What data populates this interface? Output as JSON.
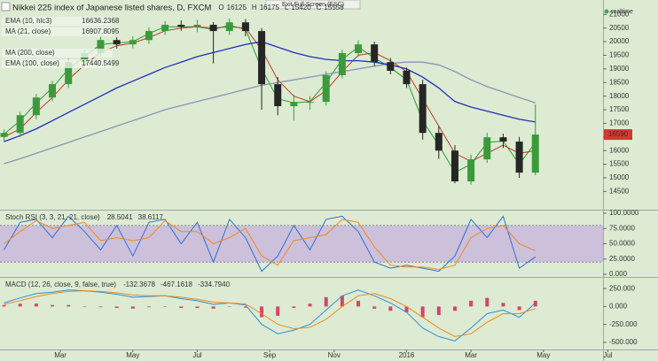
{
  "ui": {
    "exit_button": "Exit Full Screen (ESC)",
    "status": "realtime"
  },
  "chart_data": [
    {
      "type": "candlestick",
      "title": "Nikkei 225 index of Japanese listed shares, D, FXCM",
      "ohlc_header": [
        {
          "label": "O",
          "value": 16125
        },
        {
          "label": "H",
          "value": 16175
        },
        {
          "label": "L",
          "value": 15420
        },
        {
          "label": "C",
          "value": 15558
        }
      ],
      "up_color": "#3c9a3c",
      "down_color": "#262626",
      "last_price": 16590,
      "last_price_color": "#d23a2e",
      "x": [
        0,
        2,
        4,
        6,
        8,
        10,
        12,
        14,
        16,
        18,
        20,
        22,
        24,
        26,
        28,
        30,
        32,
        34,
        36,
        38,
        40,
        42,
        44,
        46,
        48,
        50,
        52,
        54,
        56,
        58,
        60,
        62,
        64,
        66
      ],
      "open": [
        16500,
        16650,
        17300,
        17950,
        18440,
        19250,
        19580,
        20060,
        19900,
        20060,
        20390,
        20620,
        20550,
        20620,
        20390,
        20710,
        20390,
        18440,
        17630,
        17790,
        17790,
        18770,
        19580,
        19900,
        19250,
        18930,
        18440,
        16650,
        16000,
        14870,
        15680,
        16490,
        16330,
        15190
      ],
      "high": [
        16780,
        17420,
        18080,
        18560,
        19380,
        19720,
        20180,
        20160,
        20200,
        20520,
        20750,
        20780,
        20800,
        20720,
        20850,
        20830,
        20500,
        18700,
        18050,
        18000,
        18900,
        19700,
        20050,
        20000,
        19400,
        19050,
        18600,
        16900,
        16200,
        15850,
        16650,
        16620,
        16500,
        17700
      ],
      "low": [
        16350,
        16500,
        17150,
        17820,
        18300,
        19100,
        19450,
        19750,
        19760,
        19920,
        20250,
        20400,
        20350,
        19200,
        20250,
        20200,
        17500,
        17300,
        17100,
        17500,
        17650,
        18650,
        19450,
        19100,
        18800,
        18300,
        16400,
        15700,
        14800,
        14750,
        15550,
        16100,
        15000,
        15100
      ],
      "close": [
        16650,
        17300,
        17950,
        18440,
        19250,
        19580,
        20060,
        19900,
        20060,
        20390,
        20620,
        20550,
        20620,
        20390,
        20710,
        20390,
        18440,
        17630,
        17790,
        17790,
        18770,
        19580,
        19900,
        19250,
        18930,
        18440,
        16650,
        16000,
        14870,
        15680,
        16490,
        16330,
        15190,
        16590
      ],
      "series": [
        {
          "name": "EMA (10, hlc3)",
          "legend_value": 16636.2368,
          "color": "#2a9d2a",
          "values": [
            16600,
            17100,
            17750,
            18300,
            19000,
            19450,
            19900,
            19950,
            20000,
            20300,
            20550,
            20550,
            20550,
            20450,
            20600,
            20450,
            19000,
            17900,
            17750,
            17800,
            18500,
            19350,
            19800,
            19400,
            19050,
            18600,
            17100,
            16200,
            15200,
            15500,
            16300,
            16350,
            15500,
            16300
          ]
        },
        {
          "name": "MA (21, close)",
          "legend_value": 16907.8095,
          "color": "#c0392b",
          "values": [
            16500,
            16800,
            17400,
            17950,
            18600,
            19150,
            19600,
            19850,
            19950,
            20150,
            20400,
            20500,
            20550,
            20500,
            20550,
            20500,
            19700,
            18600,
            18000,
            17800,
            18200,
            18900,
            19500,
            19600,
            19300,
            18900,
            17900,
            16900,
            15900,
            15600,
            15900,
            16200,
            15900,
            16000
          ]
        },
        {
          "name": "MA (200, close)",
          "color": "#8796b3",
          "values": [
            15520,
            15700,
            15900,
            16100,
            16300,
            16500,
            16700,
            16900,
            17100,
            17300,
            17500,
            17650,
            17800,
            17950,
            18100,
            18250,
            18400,
            18500,
            18600,
            18700,
            18800,
            18900,
            19000,
            19100,
            19200,
            19250,
            19250,
            19150,
            18900,
            18600,
            18350,
            18150,
            17950,
            17750
          ]
        },
        {
          "name": "EMA (100, close)",
          "legend_value": 17440.5499,
          "color": "#1f2fbf",
          "values": [
            16330,
            16550,
            16800,
            17100,
            17400,
            17700,
            18000,
            18300,
            18550,
            18800,
            19050,
            19250,
            19450,
            19600,
            19750,
            19900,
            20000,
            19800,
            19600,
            19450,
            19350,
            19300,
            19300,
            19250,
            19150,
            19000,
            18700,
            18300,
            17800,
            17600,
            17450,
            17300,
            17150,
            17050
          ]
        }
      ],
      "xlim": [
        -0.5,
        75.5
      ],
      "ylim": [
        13830,
        21530
      ],
      "yticks": [
        14500,
        15000,
        15500,
        16000,
        16500,
        17000,
        17500,
        18000,
        18500,
        19000,
        19500,
        20000,
        20500,
        21000
      ]
    },
    {
      "type": "line",
      "title": "Stoch RSI (3, 3, 21, 21, close)",
      "band": [
        20,
        80
      ],
      "band_color": "#c9b8dd",
      "x": [
        0,
        2,
        4,
        6,
        8,
        10,
        12,
        14,
        16,
        18,
        20,
        22,
        24,
        26,
        28,
        30,
        32,
        34,
        36,
        38,
        40,
        42,
        44,
        46,
        48,
        50,
        52,
        54,
        56,
        58,
        60,
        62,
        64,
        66
      ],
      "series": [
        {
          "legend_value": 28.5041,
          "color": "#2f6fd6",
          "values": [
            40,
            85,
            90,
            60,
            95,
            70,
            40,
            80,
            30,
            85,
            90,
            50,
            85,
            20,
            90,
            60,
            5,
            30,
            80,
            40,
            90,
            95,
            70,
            20,
            10,
            15,
            10,
            5,
            30,
            90,
            60,
            95,
            10,
            28.5041
          ]
        },
        {
          "legend_value": 38.6117,
          "color": "#f0891e",
          "values": [
            50,
            70,
            88,
            75,
            80,
            85,
            55,
            60,
            55,
            60,
            88,
            70,
            70,
            50,
            60,
            75,
            30,
            15,
            55,
            60,
            65,
            90,
            85,
            45,
            15,
            12,
            12,
            8,
            15,
            60,
            75,
            80,
            50,
            38.6117
          ]
        }
      ],
      "xlim": [
        -0.5,
        75.5
      ],
      "ylim": [
        -4.3,
        104.3
      ],
      "yticks": [
        {
          "value": 0,
          "label": "0.000"
        },
        {
          "value": 25,
          "label": "25.0000"
        },
        {
          "value": 50,
          "label": "50.0000"
        },
        {
          "value": 75,
          "label": "75.0000"
        },
        {
          "value": 100,
          "label": "100.0000"
        }
      ]
    },
    {
      "type": "line",
      "title": "MACD (12, 26, close, 9, false, true)",
      "x": [
        0,
        2,
        4,
        6,
        8,
        10,
        12,
        14,
        16,
        18,
        20,
        22,
        24,
        26,
        28,
        30,
        32,
        34,
        36,
        38,
        40,
        42,
        44,
        46,
        48,
        50,
        52,
        54,
        56,
        58,
        60,
        62,
        64,
        66
      ],
      "series": [
        {
          "kind": "bar",
          "legend_value": -132.3678,
          "color": "#d9436b",
          "values": [
            20,
            40,
            40,
            20,
            20,
            0,
            -10,
            -20,
            -30,
            -10,
            0,
            -20,
            -20,
            -30,
            0,
            -15,
            -150,
            -130,
            -20,
            40,
            130,
            150,
            80,
            -30,
            -60,
            -80,
            -150,
            -120,
            -60,
            80,
            120,
            50,
            -50,
            80
          ]
        },
        {
          "kind": "line",
          "legend_value": -467.1618,
          "color": "#2f8fd6",
          "values": [
            50,
            120,
            180,
            200,
            230,
            220,
            200,
            170,
            130,
            140,
            150,
            110,
            80,
            30,
            50,
            20,
            -250,
            -380,
            -330,
            -250,
            -50,
            150,
            230,
            150,
            50,
            -80,
            -300,
            -420,
            -480,
            -300,
            -100,
            -50,
            -150,
            50
          ]
        },
        {
          "kind": "line",
          "legend_value": {
            "value": -334.794,
            "label": "-334.7940"
          },
          "color": "#f0891e",
          "values": [
            30,
            80,
            140,
            180,
            210,
            220,
            210,
            190,
            160,
            150,
            150,
            130,
            100,
            60,
            50,
            35,
            -100,
            -250,
            -310,
            -290,
            -180,
            0,
            150,
            180,
            110,
            0,
            -150,
            -300,
            -420,
            -380,
            -220,
            -100,
            -100,
            -30
          ]
        }
      ],
      "xlim": [
        -0.5,
        75.5
      ],
      "ylim": [
        -600,
        400
      ],
      "yticks": [
        {
          "value": -500,
          "label": "-500.000"
        },
        {
          "value": -250,
          "label": "-250.000"
        },
        {
          "value": 0,
          "label": "0.000"
        },
        {
          "value": 250,
          "label": "250.000"
        }
      ],
      "xticks": [
        {
          "value": 7,
          "label": "Mar"
        },
        {
          "value": 16,
          "label": "May"
        },
        {
          "value": 24,
          "label": "Jul"
        },
        {
          "value": 33,
          "label": "Sep"
        },
        {
          "value": 41,
          "label": "Nov"
        },
        {
          "value": 50,
          "label": "2016"
        },
        {
          "value": 58,
          "label": "Mar"
        },
        {
          "value": 67,
          "label": "May"
        },
        {
          "value": 75,
          "label": "Jul"
        }
      ]
    }
  ]
}
